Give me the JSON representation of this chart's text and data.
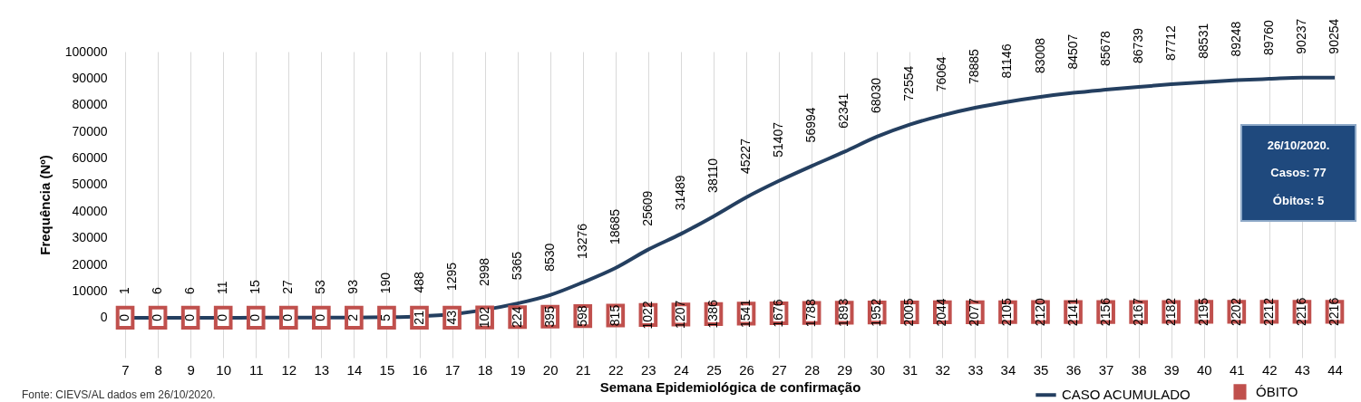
{
  "chart_data": {
    "type": "line",
    "xlabel": "Semana Epidemiológica de confirmação",
    "ylabel": "Frequência (Nº)",
    "categories": [
      "7",
      "8",
      "9",
      "10",
      "11",
      "12",
      "13",
      "14",
      "15",
      "16",
      "17",
      "18",
      "19",
      "20",
      "21",
      "22",
      "23",
      "24",
      "25",
      "26",
      "27",
      "28",
      "29",
      "30",
      "31",
      "32",
      "33",
      "34",
      "35",
      "36",
      "37",
      "38",
      "39",
      "40",
      "41",
      "42",
      "43",
      "44"
    ],
    "series": [
      {
        "name": "CASO ACUMULADO",
        "color": "#243f60",
        "values": [
          1,
          6,
          6,
          11,
          15,
          27,
          53,
          93,
          190,
          488,
          1295,
          2998,
          5365,
          8530,
          13276,
          18685,
          25609,
          31489,
          38110,
          45227,
          51407,
          56994,
          62341,
          68030,
          72554,
          76064,
          78885,
          81146,
          83008,
          84507,
          85678,
          86739,
          87712,
          88531,
          89248,
          89760,
          90237,
          90254
        ]
      },
      {
        "name": "ÓBITO",
        "type": "scatter",
        "marker": "square",
        "color": "#c0504d",
        "values": [
          0,
          0,
          0,
          0,
          0,
          0,
          0,
          2,
          5,
          21,
          43,
          102,
          224,
          395,
          598,
          815,
          1022,
          1207,
          1386,
          1541,
          1676,
          1788,
          1893,
          1952,
          2005,
          2044,
          2077,
          2105,
          2120,
          2141,
          2156,
          2167,
          2182,
          2195,
          2202,
          2212,
          2216,
          2216
        ]
      }
    ],
    "ylim": [
      -15000,
      100000
    ],
    "yticks": [
      0,
      10000,
      20000,
      30000,
      40000,
      50000,
      60000,
      70000,
      80000,
      90000,
      100000
    ],
    "grid": "x",
    "data_labels": true,
    "legend": "bottom right",
    "annotations": [
      "26/10/2020.",
      "Casos: 77",
      "Óbitos: 5",
      "Fonte: CIEVS/AL dados em 26/10/2020."
    ]
  }
}
